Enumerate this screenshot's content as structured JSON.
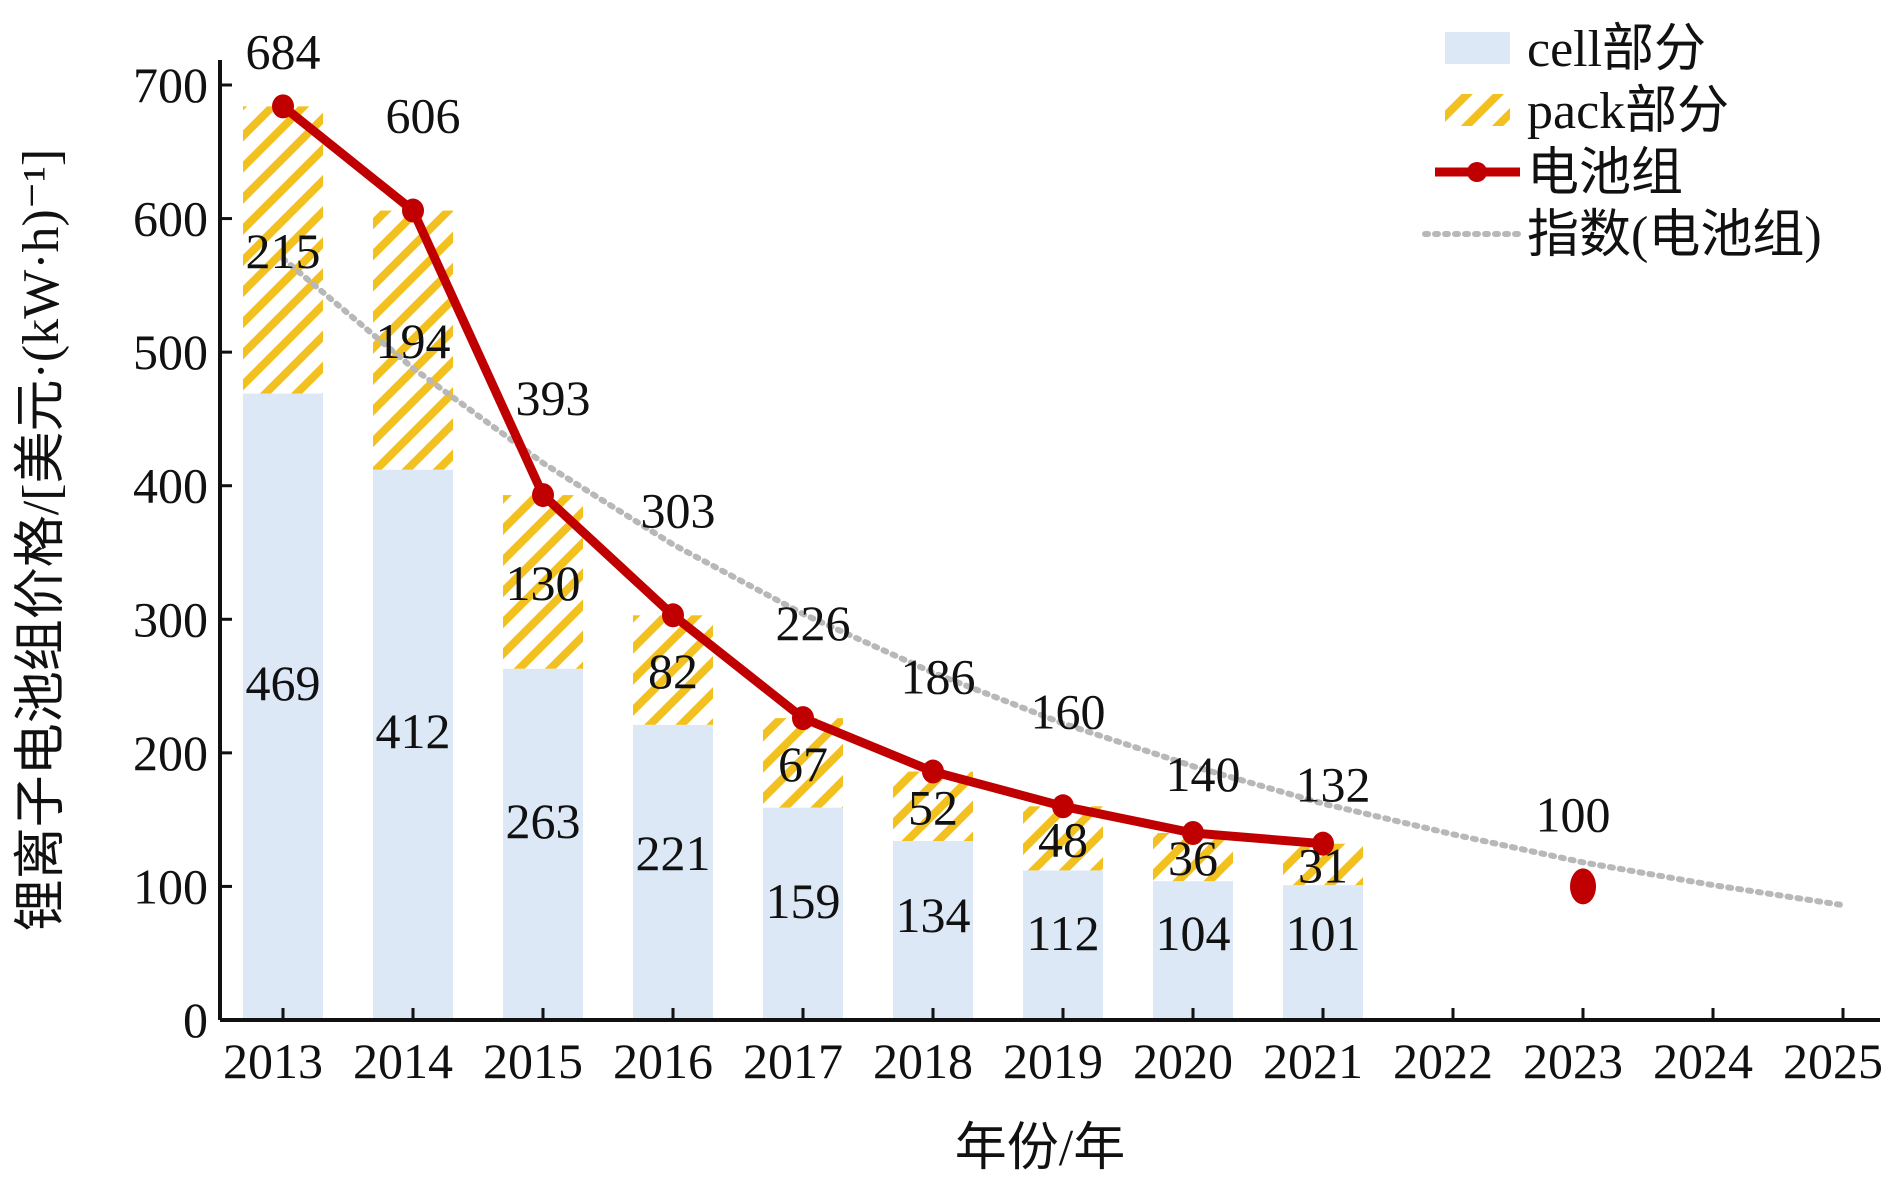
{
  "chart_data": {
    "type": "bar",
    "title": "",
    "xlabel": "年份/年",
    "ylabel": "锂离子电池组价格/[美元·(kW·h)⁻¹]",
    "categories": [
      "2013",
      "2014",
      "2015",
      "2016",
      "2017",
      "2018",
      "2019",
      "2020",
      "2021",
      "2022",
      "2023",
      "2024",
      "2025"
    ],
    "ylim": [
      0,
      700
    ],
    "yticks": [
      "0",
      "100",
      "200",
      "300",
      "400",
      "500",
      "600",
      "700"
    ],
    "grid": false,
    "legend_position": "top-right",
    "series": [
      {
        "name": "cell部分",
        "kind": "stacked-bar",
        "color": "#dce8f6",
        "values": [
          469,
          412,
          263,
          221,
          159,
          134,
          112,
          104,
          101,
          null,
          null,
          null,
          null
        ]
      },
      {
        "name": "pack部分",
        "kind": "stacked-bar-hatched",
        "color": "#f2c11f",
        "values": [
          215,
          194,
          130,
          82,
          67,
          52,
          48,
          36,
          31,
          null,
          null,
          null,
          null
        ]
      },
      {
        "name": "电池组",
        "kind": "line-marker",
        "color": "#c00000",
        "values": [
          684,
          606,
          393,
          303,
          226,
          186,
          160,
          140,
          132,
          null,
          100,
          null,
          null
        ]
      },
      {
        "name": "指数(电池组)",
        "kind": "dotted-trend",
        "color": "#b8b8b8",
        "values": [
          570,
          488,
          417,
          356,
          304,
          260,
          222,
          190,
          162,
          139,
          118,
          101,
          86
        ]
      }
    ],
    "value_labels": {
      "cell": [
        "469",
        "412",
        "263",
        "221",
        "159",
        "134",
        "112",
        "104",
        "101"
      ],
      "pack": [
        "215",
        "194",
        "130",
        "82",
        "67",
        "52",
        "48",
        "36",
        "31"
      ],
      "total": [
        "684",
        "606",
        "393",
        "303",
        "226",
        "186",
        "160",
        "140",
        "132",
        "",
        "100"
      ]
    }
  }
}
